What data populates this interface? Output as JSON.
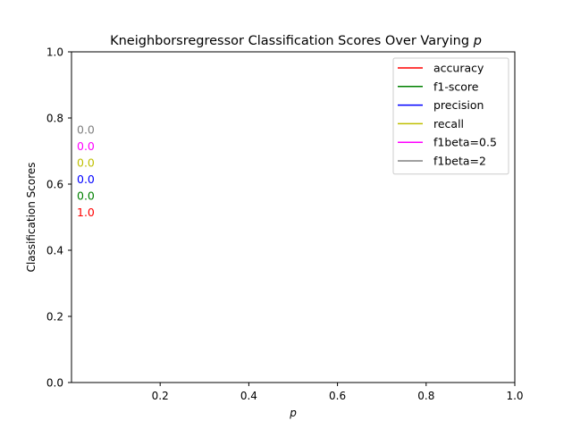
{
  "chart_data": {
    "type": "line",
    "title": "Kneighborsregressor Classification Scores Over Varying ",
    "title_var": "p",
    "xlabel": "p",
    "ylabel": "Classification Scores",
    "xlim": [
      0.0,
      1.0
    ],
    "ylim": [
      0.0,
      1.0
    ],
    "x_ticks": [
      0.2,
      0.4,
      0.6,
      0.8,
      1.0
    ],
    "x_tick_labels": [
      "0.2",
      "0.4",
      "0.6",
      "0.8",
      "1.0"
    ],
    "y_ticks": [
      0.0,
      0.2,
      0.4,
      0.6,
      0.8,
      1.0
    ],
    "y_tick_labels": [
      "0.0",
      "0.2",
      "0.4",
      "0.6",
      "0.8",
      "1.0"
    ],
    "grid": false,
    "legend_position": "top-right",
    "series": [
      {
        "name": "accuracy",
        "color": "#ff0000",
        "x": [
          0.0
        ],
        "y": [
          1.0
        ],
        "end_label": "1.0"
      },
      {
        "name": "f1-score",
        "color": "#008000",
        "x": [
          0.0
        ],
        "y": [
          0.0
        ],
        "end_label": "0.0"
      },
      {
        "name": "precision",
        "color": "#0000ff",
        "x": [
          0.0
        ],
        "y": [
          0.0
        ],
        "end_label": "0.0"
      },
      {
        "name": "recall",
        "color": "#bfbf00",
        "x": [
          0.0
        ],
        "y": [
          0.0
        ],
        "end_label": "0.0"
      },
      {
        "name": "f1beta=0.5",
        "color": "#ff00ff",
        "x": [
          0.0
        ],
        "y": [
          0.0
        ],
        "end_label": "0.0"
      },
      {
        "name": "f1beta=2",
        "color": "#808080",
        "x": [
          0.0
        ],
        "y": [
          0.0
        ],
        "end_label": "0.0"
      }
    ]
  }
}
